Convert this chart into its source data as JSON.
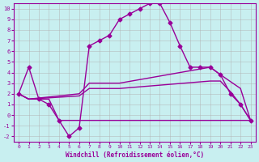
{
  "xlabel": "Windchill (Refroidissement éolien,°C)",
  "background_color": "#c8eff0",
  "grid_color": "#b0b0b0",
  "line_color": "#990099",
  "xlim": [
    -0.5,
    23.5
  ],
  "ylim": [
    -2.5,
    10.5
  ],
  "xticks": [
    0,
    1,
    2,
    3,
    4,
    5,
    6,
    7,
    8,
    9,
    10,
    11,
    12,
    13,
    14,
    15,
    16,
    17,
    18,
    19,
    20,
    21,
    22,
    23
  ],
  "yticks": [
    -2,
    -1,
    0,
    1,
    2,
    3,
    4,
    5,
    6,
    7,
    8,
    9,
    10
  ],
  "line1_x": [
    0,
    1,
    2,
    3,
    4,
    5,
    6,
    7,
    8,
    9,
    10,
    11,
    12,
    13,
    14,
    15,
    16,
    17,
    18,
    19,
    20,
    21,
    22,
    23
  ],
  "line1_y": [
    2,
    4.5,
    1.5,
    1.0,
    -0.5,
    -2.0,
    -1.2,
    6.5,
    7.0,
    7.5,
    9.0,
    9.5,
    10.0,
    10.5,
    10.5,
    8.7,
    6.5,
    4.5,
    4.5,
    4.5,
    3.8,
    2.0,
    1.0,
    -0.5
  ],
  "line2_x": [
    0,
    1,
    6,
    7,
    10,
    19,
    20,
    22,
    23
  ],
  "line2_y": [
    2,
    1.5,
    2.0,
    3.0,
    3.0,
    4.5,
    3.8,
    2.5,
    -0.5
  ],
  "line3_x": [
    0,
    1,
    6,
    7,
    10,
    19,
    20,
    21,
    22,
    23
  ],
  "line3_y": [
    2,
    1.5,
    1.8,
    2.5,
    2.5,
    3.2,
    3.2,
    2.2,
    1.0,
    -0.5
  ],
  "line4_x": [
    0,
    1,
    2,
    3,
    4,
    5,
    6,
    7,
    10,
    19,
    22,
    23
  ],
  "line4_y": [
    2,
    1.5,
    1.5,
    1.5,
    -0.5,
    -0.5,
    -0.5,
    -0.5,
    -0.5,
    -0.5,
    -0.5,
    -0.5
  ],
  "marker": "D",
  "marker_size": 2.5,
  "linewidth": 1.0
}
